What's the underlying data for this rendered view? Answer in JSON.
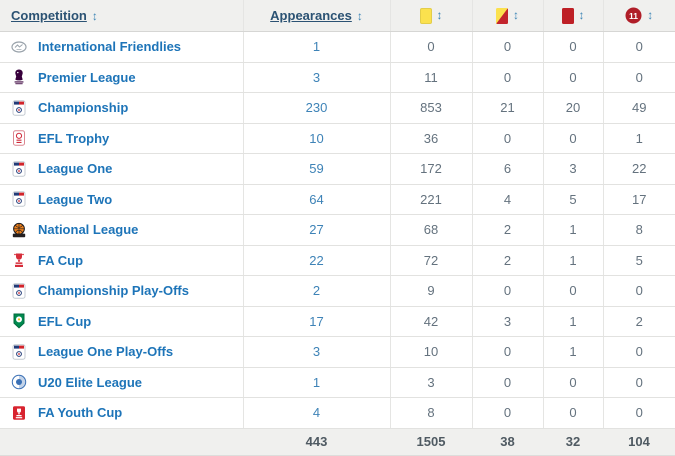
{
  "table": {
    "sort_icon": "↕",
    "penalty_badge_number": "11",
    "columns": [
      {
        "key": "competition",
        "label": "Competition",
        "sortable": true
      },
      {
        "key": "appearances",
        "label": "Appearances",
        "sortable": true
      },
      {
        "key": "yellow_cards",
        "icon": "yellow-card",
        "sortable": true
      },
      {
        "key": "second_yellow_cards",
        "icon": "second-yellow-card",
        "sortable": true
      },
      {
        "key": "red_cards",
        "icon": "red-card",
        "sortable": true
      },
      {
        "key": "penalties",
        "icon": "penalty",
        "badge_text": "11",
        "sortable": true
      }
    ],
    "rows": [
      {
        "competition": "International Friendlies",
        "icon": "international-friendlies-logo",
        "appearances": "1",
        "yellow_cards": "0",
        "second_yellow_cards": "0",
        "red_cards": "0",
        "penalties": "0"
      },
      {
        "competition": "Premier League",
        "icon": "premier-league-logo",
        "appearances": "3",
        "yellow_cards": "11",
        "second_yellow_cards": "0",
        "red_cards": "0",
        "penalties": "0"
      },
      {
        "competition": "Championship",
        "icon": "efl-championship-logo",
        "appearances": "230",
        "yellow_cards": "853",
        "second_yellow_cards": "21",
        "red_cards": "20",
        "penalties": "49"
      },
      {
        "competition": "EFL Trophy",
        "icon": "efl-trophy-logo",
        "appearances": "10",
        "yellow_cards": "36",
        "second_yellow_cards": "0",
        "red_cards": "0",
        "penalties": "1"
      },
      {
        "competition": "League One",
        "icon": "league-one-logo",
        "appearances": "59",
        "yellow_cards": "172",
        "second_yellow_cards": "6",
        "red_cards": "3",
        "penalties": "22"
      },
      {
        "competition": "League Two",
        "icon": "league-two-logo",
        "appearances": "64",
        "yellow_cards": "221",
        "second_yellow_cards": "4",
        "red_cards": "5",
        "penalties": "17"
      },
      {
        "competition": "National League",
        "icon": "national-league-logo",
        "appearances": "27",
        "yellow_cards": "68",
        "second_yellow_cards": "2",
        "red_cards": "1",
        "penalties": "8"
      },
      {
        "competition": "FA Cup",
        "icon": "fa-cup-logo",
        "appearances": "22",
        "yellow_cards": "72",
        "second_yellow_cards": "2",
        "red_cards": "1",
        "penalties": "5"
      },
      {
        "competition": "Championship Play-Offs",
        "icon": "championship-playoffs-logo",
        "appearances": "2",
        "yellow_cards": "9",
        "second_yellow_cards": "0",
        "red_cards": "0",
        "penalties": "0"
      },
      {
        "competition": "EFL Cup",
        "icon": "efl-cup-logo",
        "appearances": "17",
        "yellow_cards": "42",
        "second_yellow_cards": "3",
        "red_cards": "1",
        "penalties": "2"
      },
      {
        "competition": "League One Play-Offs",
        "icon": "league-one-playoffs-logo",
        "appearances": "3",
        "yellow_cards": "10",
        "second_yellow_cards": "0",
        "red_cards": "1",
        "penalties": "0"
      },
      {
        "competition": "U20 Elite League",
        "icon": "u20-elite-league-logo",
        "appearances": "1",
        "yellow_cards": "3",
        "second_yellow_cards": "0",
        "red_cards": "0",
        "penalties": "0"
      },
      {
        "competition": "FA Youth Cup",
        "icon": "fa-youth-cup-logo",
        "appearances": "4",
        "yellow_cards": "8",
        "second_yellow_cards": "0",
        "red_cards": "0",
        "penalties": "0"
      }
    ],
    "totals": {
      "appearances": "443",
      "yellow_cards": "1505",
      "second_yellow_cards": "38",
      "red_cards": "32",
      "penalties": "104"
    }
  },
  "colors": {
    "header_bg": "#f0f0ee",
    "header_link": "#2b5273",
    "sort_icon": "#3e86b6",
    "competition_link": "#1d74b8",
    "appearances_value": "#3e83b7",
    "stat_value": "#64727e",
    "yellow_card": "#fbe14e",
    "red_card": "#be2026",
    "penalty_badge": "#b01e28"
  }
}
